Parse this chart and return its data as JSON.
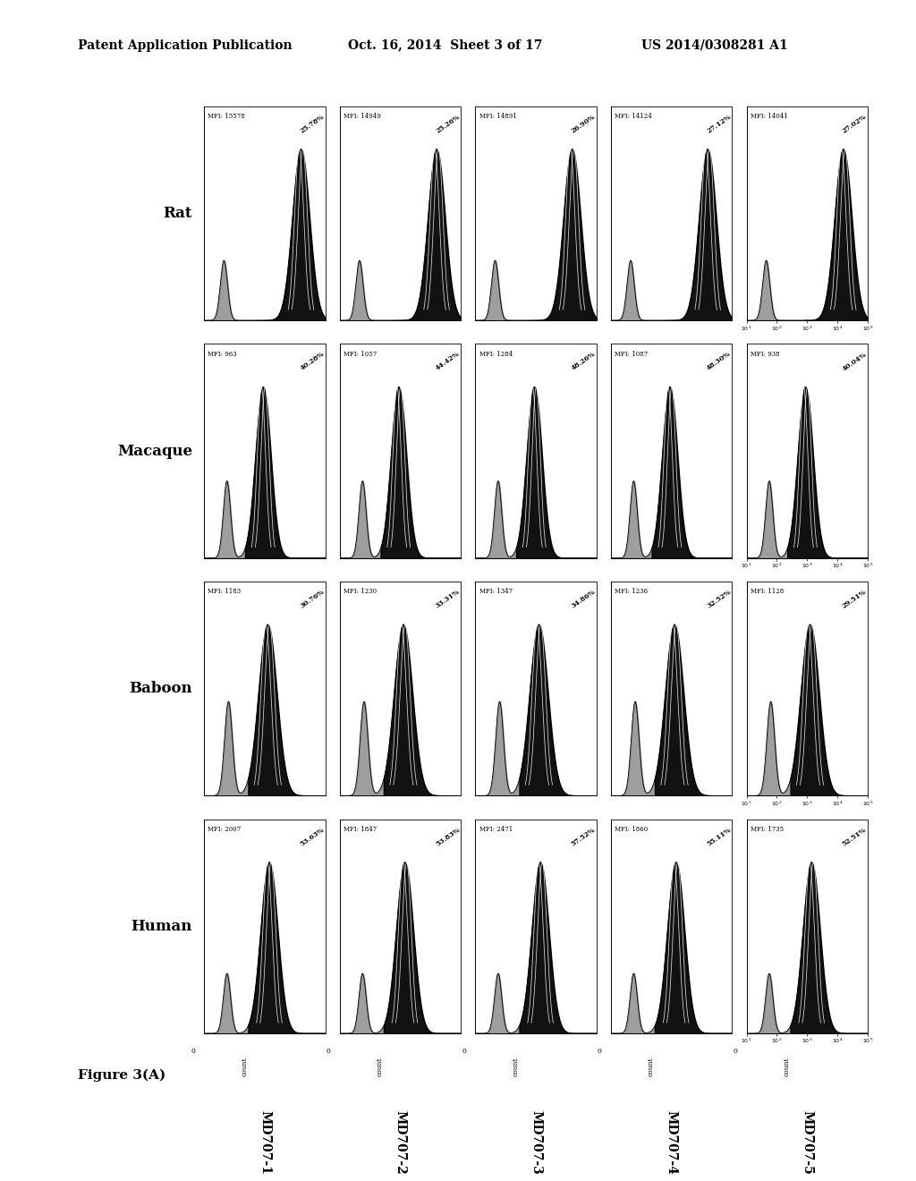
{
  "header_left": "Patent Application Publication",
  "header_mid": "Oct. 16, 2014  Sheet 3 of 17",
  "header_right": "US 2014/0308281 A1",
  "figure_label": "Figure 3(A)",
  "row_labels_top_to_bottom": [
    "Rat",
    "Macaque",
    "Baboon",
    "Human"
  ],
  "col_labels_left_to_right": [
    "MD707-1",
    "MD707-2",
    "MD707-3",
    "MD707-4",
    "MD707-5"
  ],
  "data": {
    "Human": {
      "MD707-1": {
        "mfi": "2007",
        "pct": "53.63%"
      },
      "MD707-2": {
        "mfi": "1847",
        "pct": "53.83%"
      },
      "MD707-3": {
        "mfi": "2471",
        "pct": "57.52%"
      },
      "MD707-4": {
        "mfi": "1860",
        "pct": "55.11%"
      },
      "MD707-5": {
        "mfi": "1735",
        "pct": "52.51%"
      }
    },
    "Baboon": {
      "MD707-1": {
        "mfi": "1183",
        "pct": "30.76%"
      },
      "MD707-2": {
        "mfi": "1230",
        "pct": "33.31%"
      },
      "MD707-3": {
        "mfi": "1347",
        "pct": "34.86%"
      },
      "MD707-4": {
        "mfi": "1236",
        "pct": "32.52%"
      },
      "MD707-5": {
        "mfi": "1128",
        "pct": "29.51%"
      }
    },
    "Macaque": {
      "MD707-1": {
        "mfi": "963",
        "pct": "40.28%"
      },
      "MD707-2": {
        "mfi": "1057",
        "pct": "44.42%"
      },
      "MD707-3": {
        "mfi": "1284",
        "pct": "48.26%"
      },
      "MD707-4": {
        "mfi": "1087",
        "pct": "48.30%"
      },
      "MD707-5": {
        "mfi": "938",
        "pct": "40.04%"
      }
    },
    "Rat": {
      "MD707-1": {
        "mfi": "15578",
        "pct": "25.78%"
      },
      "MD707-2": {
        "mfi": "14949",
        "pct": "25.26%"
      },
      "MD707-3": {
        "mfi": "14891",
        "pct": "26.90%"
      },
      "MD707-4": {
        "mfi": "14124",
        "pct": "27.12%"
      },
      "MD707-5": {
        "mfi": "14041",
        "pct": "27.02%"
      }
    }
  },
  "peak_params": {
    "Human": {
      "p1c": 1.75,
      "p1w": 0.12,
      "p1h": 0.35,
      "p2c": 3.15,
      "p2w": 0.28,
      "p2h": 1.0
    },
    "Baboon": {
      "p1c": 1.8,
      "p1w": 0.13,
      "p1h": 0.55,
      "p2c": 3.1,
      "p2w": 0.3,
      "p2h": 1.0
    },
    "Macaque": {
      "p1c": 1.75,
      "p1w": 0.12,
      "p1h": 0.45,
      "p2c": 2.95,
      "p2w": 0.25,
      "p2h": 1.0
    },
    "Rat": {
      "p1c": 1.65,
      "p1w": 0.12,
      "p1h": 0.35,
      "p2c": 4.2,
      "p2w": 0.28,
      "p2h": 1.0
    }
  },
  "background_color": "#ffffff"
}
